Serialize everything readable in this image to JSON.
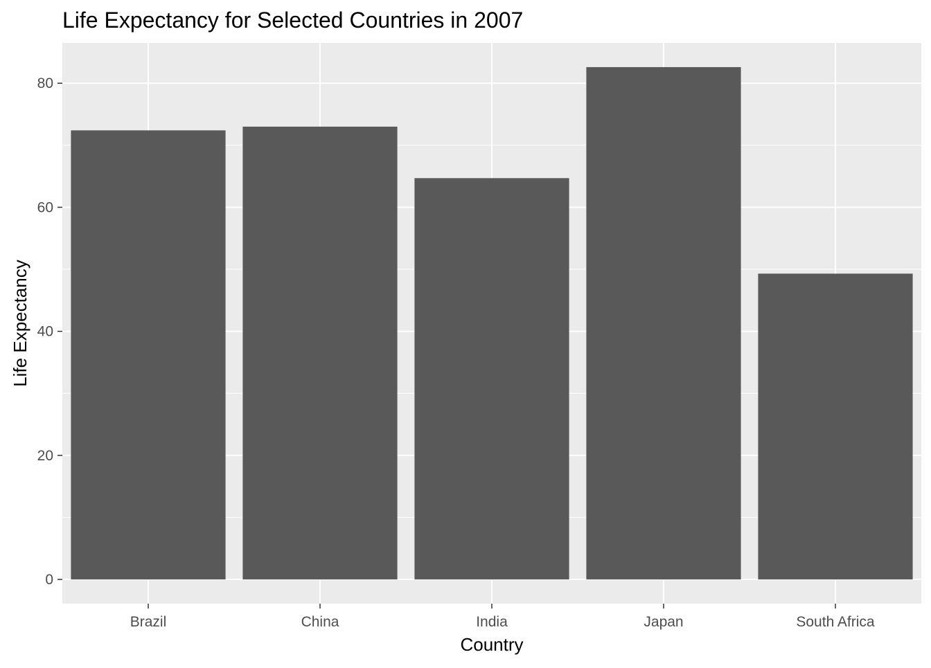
{
  "chart_data": {
    "type": "bar",
    "title": "Life Expectancy for Selected Countries in 2007",
    "xlabel": "Country",
    "ylabel": "Life Expectancy",
    "categories": [
      "Brazil",
      "China",
      "India",
      "Japan",
      "South Africa"
    ],
    "values": [
      72.4,
      73.0,
      64.7,
      82.6,
      49.3
    ],
    "ylim": [
      -3.9,
      86.5
    ],
    "yticks": [
      0,
      20,
      40,
      60,
      80
    ],
    "ytick_labels": [
      "0",
      "20",
      "40",
      "60",
      "80"
    ],
    "grid": true,
    "legend": "none",
    "colors": {
      "bar": "#595959",
      "panel_background": "#ebebeb",
      "grid": "#ffffff",
      "tick_text": "#4d4d4d",
      "tick_mark": "#333333"
    }
  }
}
